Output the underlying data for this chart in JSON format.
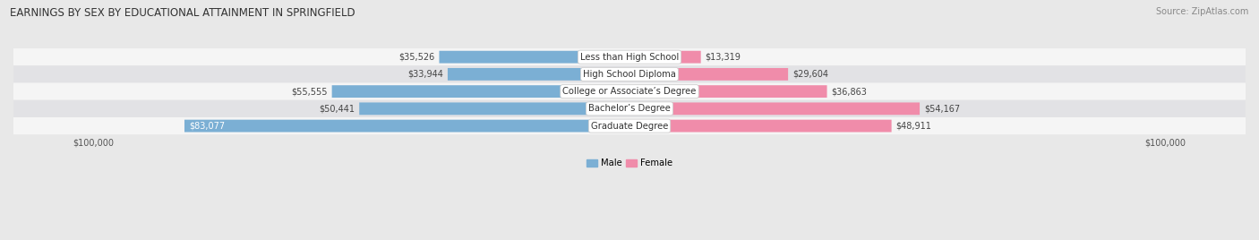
{
  "title": "EARNINGS BY SEX BY EDUCATIONAL ATTAINMENT IN SPRINGFIELD",
  "source": "Source: ZipAtlas.com",
  "categories": [
    "Less than High School",
    "High School Diploma",
    "College or Associate’s Degree",
    "Bachelor’s Degree",
    "Graduate Degree"
  ],
  "male_values": [
    35526,
    33944,
    55555,
    50441,
    83077
  ],
  "female_values": [
    13319,
    29604,
    36863,
    54167,
    48911
  ],
  "male_color": "#7bafd4",
  "female_color": "#f08caa",
  "male_label": "Male",
  "female_label": "Female",
  "max_value": 100000,
  "bar_height": 0.72,
  "background_color": "#e8e8e8",
  "row_bg_light": "#f5f5f5",
  "row_bg_dark": "#e2e2e5",
  "title_fontsize": 8.5,
  "label_fontsize": 7.2,
  "value_fontsize": 7.0,
  "axis_fontsize": 7.0,
  "source_fontsize": 7.0
}
